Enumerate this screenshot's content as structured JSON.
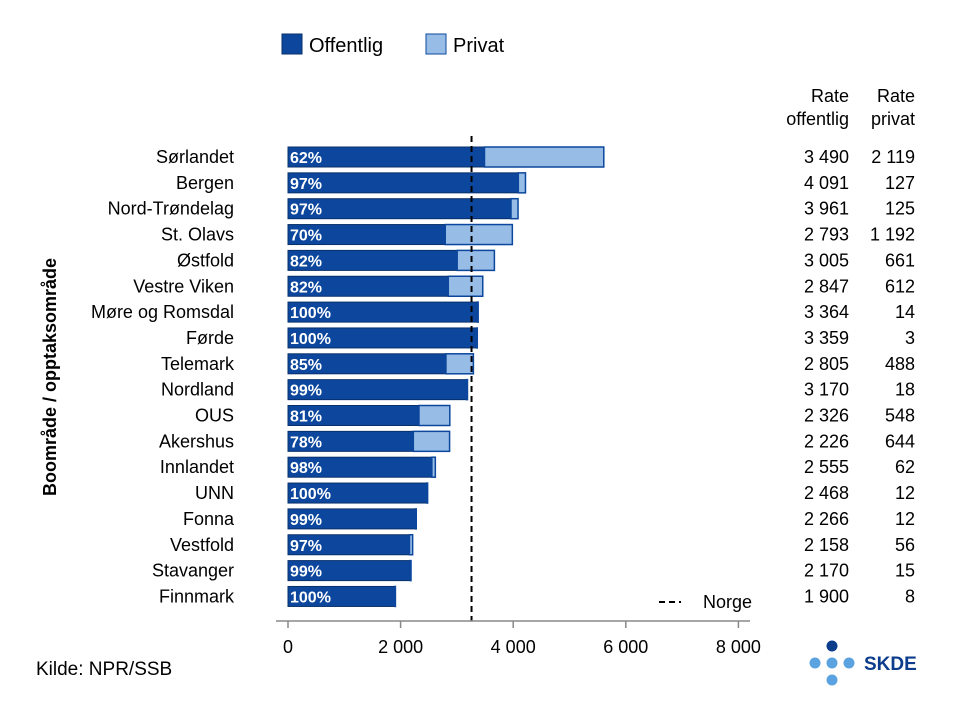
{
  "chart_data": {
    "type": "bar",
    "orientation": "horizontal",
    "stacked": true,
    "ylabel": "Boområde / opptaksområde",
    "categories": [
      "Sørlandet",
      "Bergen",
      "Nord-Trøndelag",
      "St. Olavs",
      "Østfold",
      "Vestre Viken",
      "Møre og Romsdal",
      "Førde",
      "Telemark",
      "Nordland",
      "OUS",
      "Akershus",
      "Innlandet",
      "UNN",
      "Fonna",
      "Vestfold",
      "Stavanger",
      "Finnmark"
    ],
    "series": [
      {
        "name": "Offentlig",
        "color": "#0c479d",
        "values": [
          3490,
          4091,
          3961,
          2793,
          3005,
          2847,
          3364,
          3359,
          2805,
          3170,
          2326,
          2226,
          2555,
          2468,
          2266,
          2158,
          2170,
          1900
        ]
      },
      {
        "name": "Privat",
        "color": "#97bde6",
        "values": [
          2119,
          127,
          125,
          1192,
          661,
          612,
          14,
          3,
          488,
          18,
          548,
          644,
          62,
          12,
          12,
          56,
          15,
          8
        ]
      }
    ],
    "share_labels": [
      "62%",
      "97%",
      "97%",
      "70%",
      "82%",
      "82%",
      "100%",
      "100%",
      "85%",
      "99%",
      "81%",
      "78%",
      "98%",
      "100%",
      "99%",
      "97%",
      "99%",
      "100%"
    ],
    "table": {
      "header_offentlig": [
        "Rate",
        "offentlig"
      ],
      "header_privat": [
        "Rate",
        "privat"
      ],
      "offentlig": [
        "3 490",
        "4 091",
        "3 961",
        "2 793",
        "3 005",
        "2 847",
        "3 364",
        "3 359",
        "2 805",
        "3 170",
        "2 326",
        "2 226",
        "2 555",
        "2 468",
        "2 266",
        "2 158",
        "2 170",
        "1 900"
      ],
      "privat": [
        "2 119",
        "127",
        "125",
        "1 192",
        "661",
        "612",
        "14",
        "3",
        "488",
        "18",
        "548",
        "644",
        "62",
        "12",
        "12",
        "56",
        "15",
        "8"
      ]
    },
    "xlim": [
      0,
      8000
    ],
    "xticks": [
      0,
      2000,
      4000,
      6000,
      8000
    ],
    "xtick_labels": [
      "0",
      "2 000",
      "4 000",
      "6 000",
      "8 000"
    ],
    "reference_line": {
      "label": "Norge",
      "value": 3260,
      "legend_symbol": "– –"
    },
    "legend_position": "top"
  },
  "source": "Kilde: NPR/SSB",
  "logo_text": "SKDE",
  "colors": {
    "offentlig": "#0c479d",
    "privat": "#97bde6",
    "axis": "#888888",
    "logo_dots": "#5ba3e0",
    "logo_dark": "#0c3d8c"
  }
}
